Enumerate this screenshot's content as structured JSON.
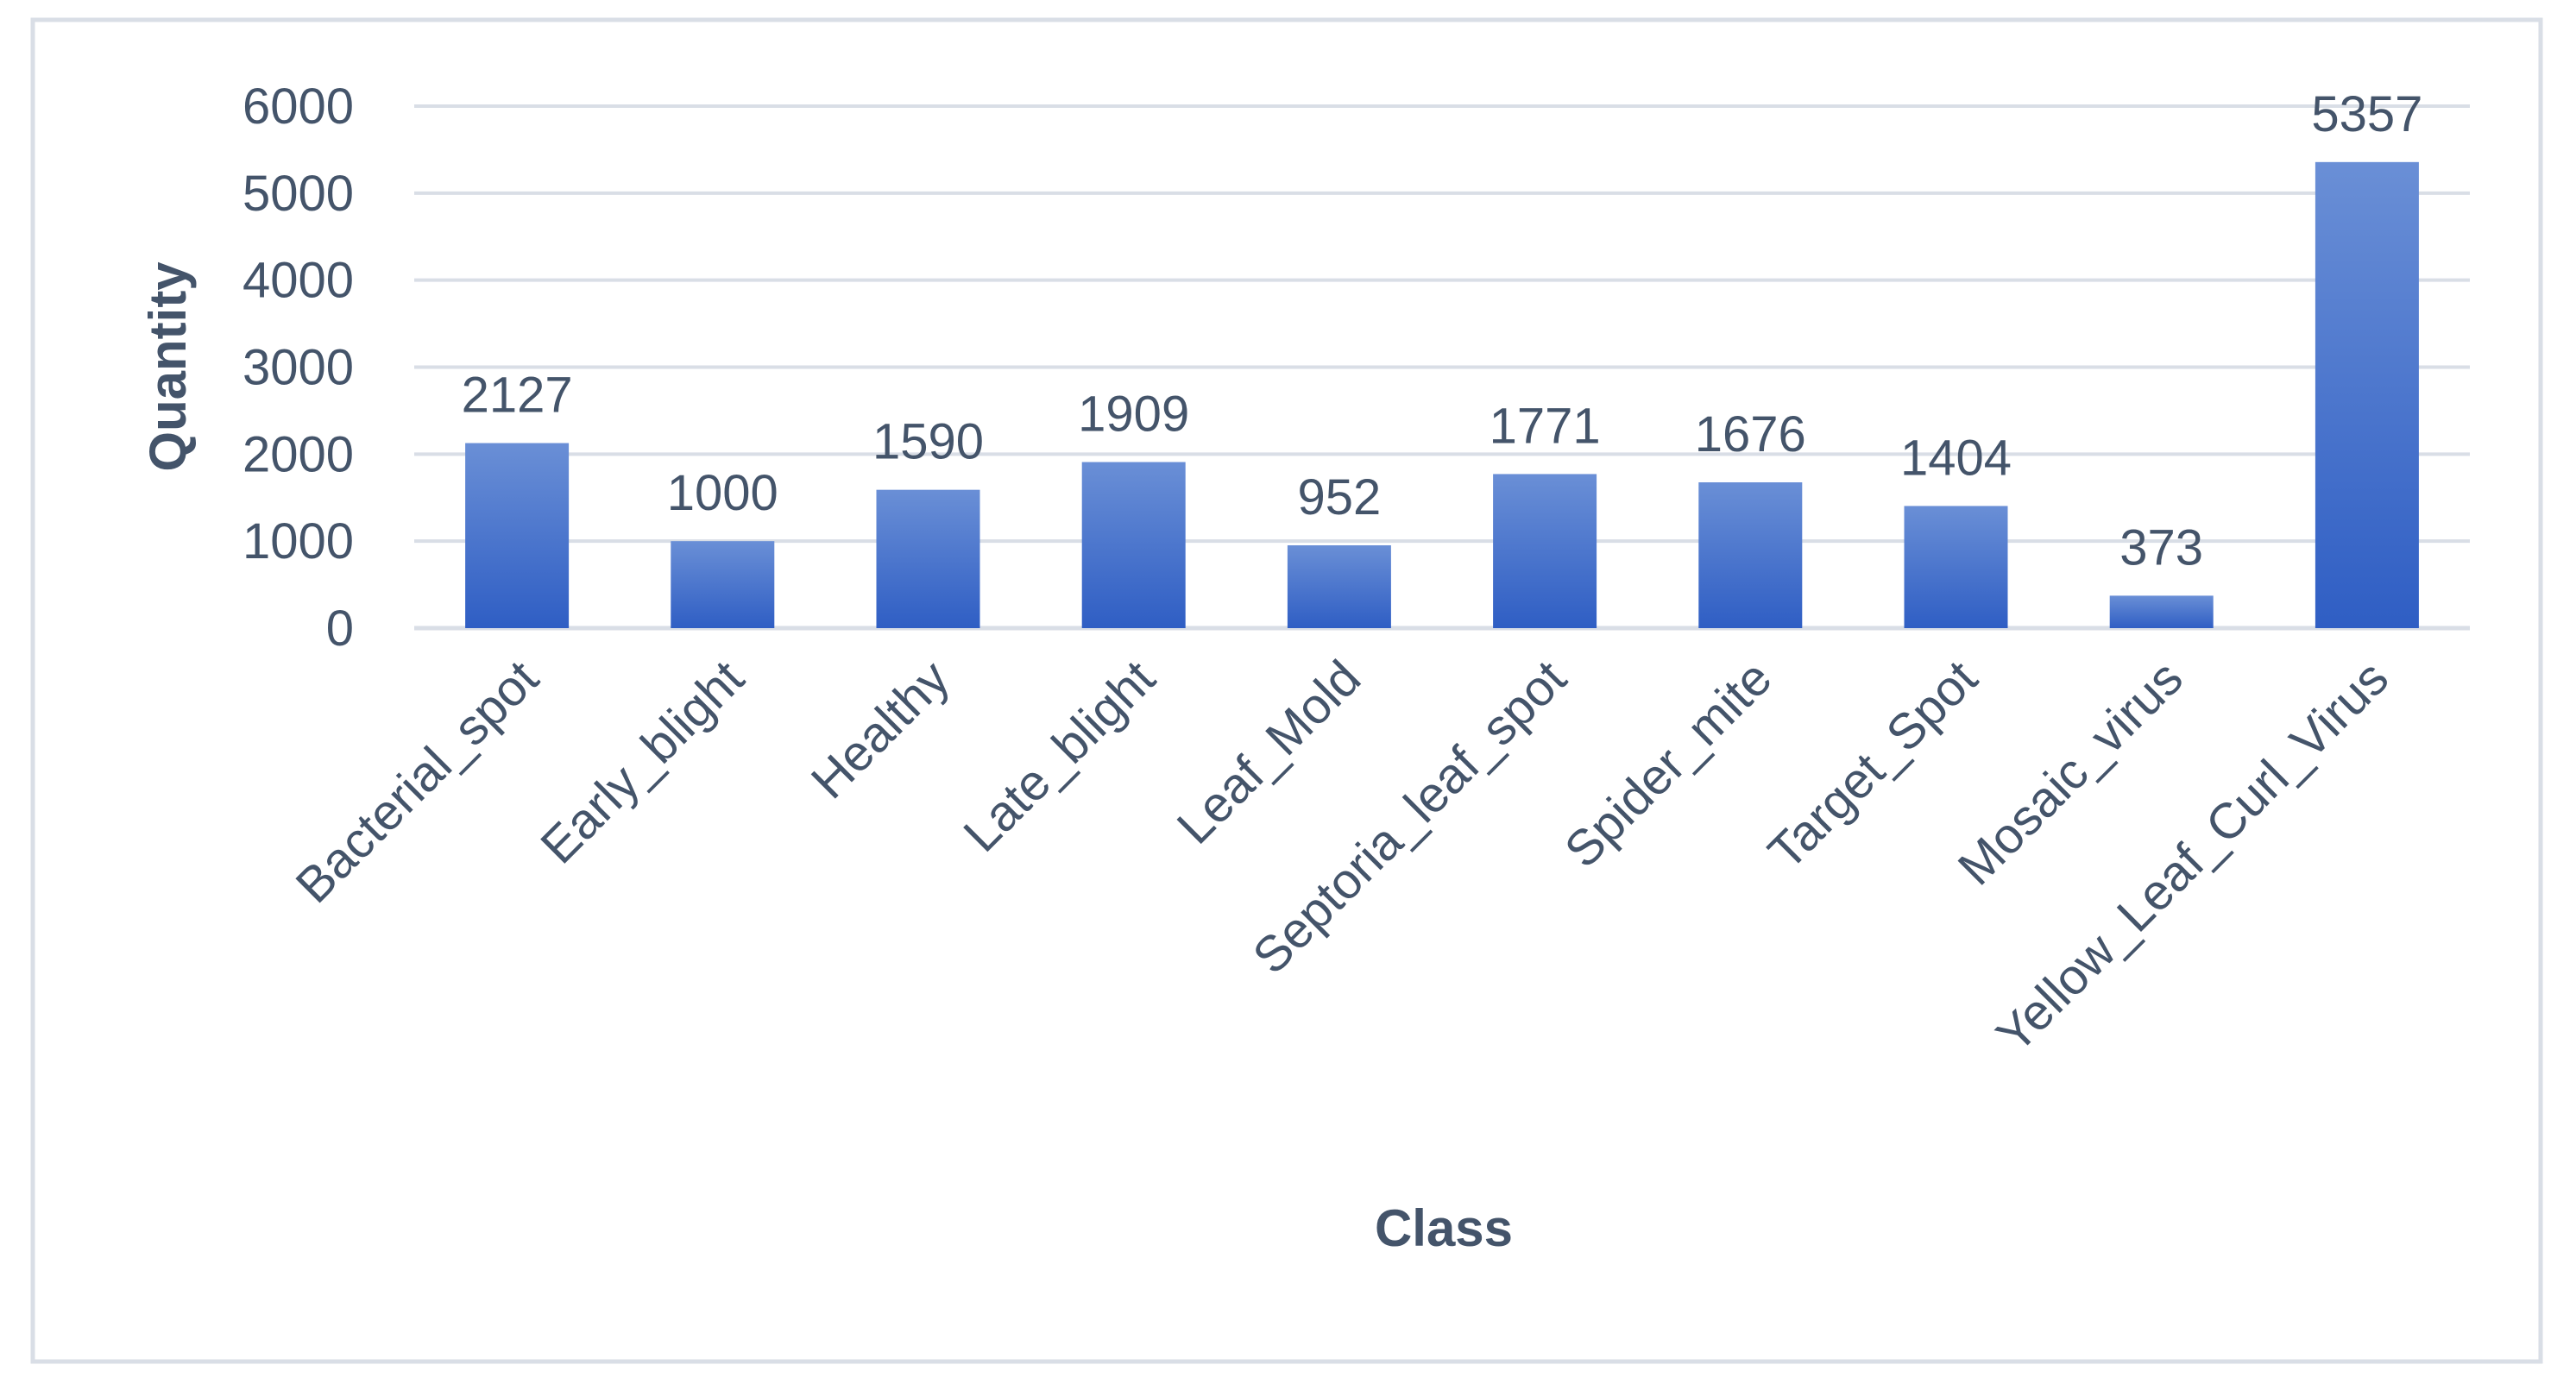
{
  "chart_data": {
    "type": "bar",
    "title": "",
    "xlabel": "Class",
    "ylabel": "Quantity",
    "categories": [
      "Bacterial_spot",
      "Early_blight",
      "Healthy",
      "Late_blight",
      "Leaf_Mold",
      "Septoria_leaf_spot",
      "Spider_mite",
      "Target_Spot",
      "Mosaic_virus",
      "Yellow_Leaf_Curl_Virus"
    ],
    "values": [
      2127,
      1000,
      1590,
      1909,
      952,
      1771,
      1676,
      1404,
      373,
      5357
    ],
    "ylim": [
      0,
      6000
    ],
    "yticks": [
      0,
      1000,
      2000,
      3000,
      4000,
      5000,
      6000
    ],
    "grid": true,
    "legend": "none",
    "colors": {
      "bar_top": "#6A8FD6",
      "bar_bottom": "#2F5EC4",
      "grid": "#D9DEE6",
      "text": "#44546A",
      "border": "#D9DEE6"
    }
  }
}
